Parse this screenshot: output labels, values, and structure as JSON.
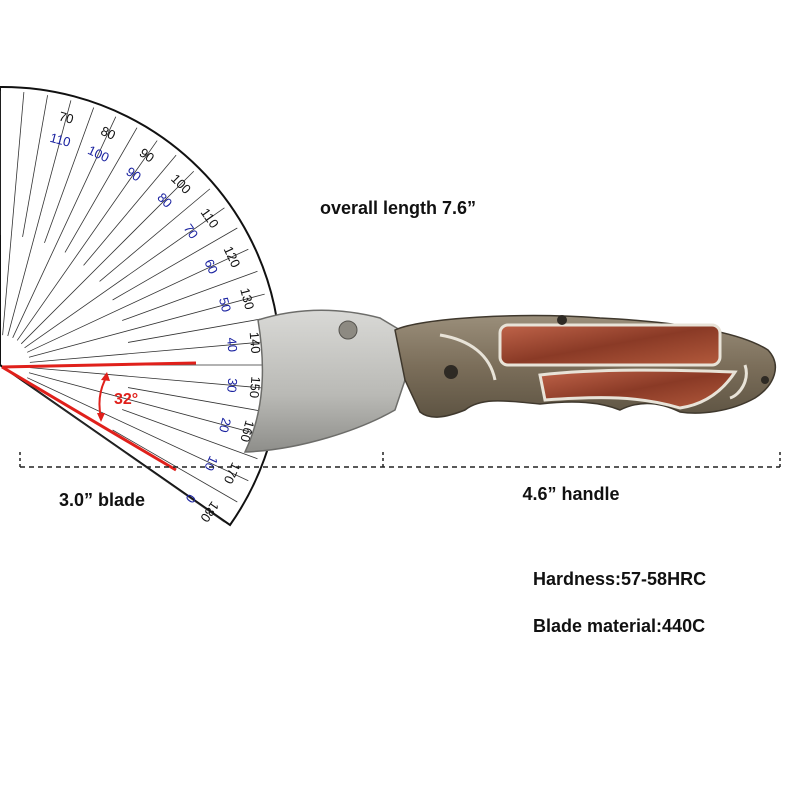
{
  "annotations": {
    "overall_length": "overall length 7.6”",
    "blade": "3.0” blade",
    "handle": "4.6” handle",
    "hardness": "Hardness:57-58HRC",
    "blade_material": "Blade material:440C",
    "angle": "32°"
  },
  "protractor": {
    "outer_scale": [
      "70",
      "80",
      "90",
      "100",
      "110",
      "120",
      "130",
      "140",
      "150",
      "160",
      "170",
      "180"
    ],
    "inner_scale": [
      "110",
      "100",
      "90",
      "80",
      "70",
      "60",
      "50",
      "40",
      "30",
      "20",
      "10",
      "0"
    ]
  }
}
